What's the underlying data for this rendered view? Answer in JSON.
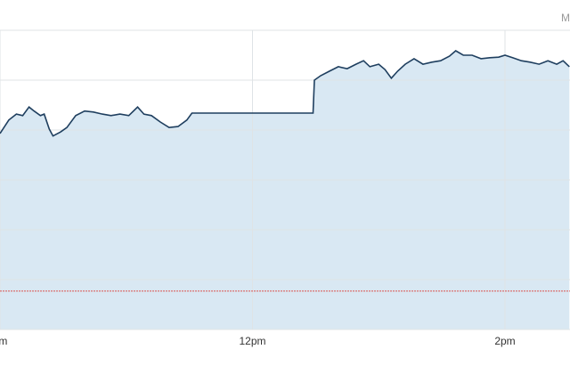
{
  "chart_data": {
    "type": "area",
    "corner_text": "M",
    "xlim": [
      10,
      14.515
    ],
    "ylim": [
      0,
      6
    ],
    "xticks": [
      {
        "value": 10,
        "label": "am"
      },
      {
        "value": 12,
        "label": "12pm"
      },
      {
        "value": 14,
        "label": "2pm"
      }
    ],
    "yticks": [
      0,
      1,
      2,
      3,
      4,
      5,
      6
    ],
    "grid": true,
    "reference_line": {
      "value": 0.77,
      "color": "#d9534f"
    },
    "series": [
      {
        "color": "#1f3f5f",
        "fill": "#d9e8f3",
        "x": [
          10.0,
          10.07,
          10.13,
          10.18,
          10.23,
          10.27,
          10.32,
          10.35,
          10.39,
          10.42,
          10.48,
          10.53,
          10.6,
          10.67,
          10.74,
          10.81,
          10.88,
          10.95,
          11.02,
          11.09,
          11.14,
          11.2,
          11.27,
          11.34,
          11.41,
          11.48,
          11.52,
          12.48,
          12.49,
          12.54,
          12.61,
          12.68,
          12.75,
          12.82,
          12.88,
          12.93,
          13.0,
          13.05,
          13.1,
          13.15,
          13.21,
          13.28,
          13.35,
          13.42,
          13.49,
          13.56,
          13.61,
          13.67,
          13.74,
          13.81,
          13.88,
          13.95,
          14.0,
          14.06,
          14.13,
          14.2,
          14.27,
          14.34,
          14.41,
          14.46,
          14.51
        ],
        "values": [
          3.93,
          4.2,
          4.32,
          4.29,
          4.46,
          4.38,
          4.29,
          4.32,
          4.02,
          3.88,
          3.96,
          4.05,
          4.29,
          4.38,
          4.36,
          4.32,
          4.29,
          4.32,
          4.29,
          4.46,
          4.32,
          4.29,
          4.16,
          4.05,
          4.07,
          4.2,
          4.34,
          4.34,
          5.0,
          5.09,
          5.18,
          5.27,
          5.23,
          5.32,
          5.39,
          5.27,
          5.32,
          5.21,
          5.04,
          5.18,
          5.32,
          5.43,
          5.32,
          5.36,
          5.39,
          5.48,
          5.59,
          5.5,
          5.5,
          5.43,
          5.45,
          5.46,
          5.5,
          5.45,
          5.39,
          5.36,
          5.32,
          5.39,
          5.32,
          5.39,
          5.27
        ]
      }
    ]
  }
}
